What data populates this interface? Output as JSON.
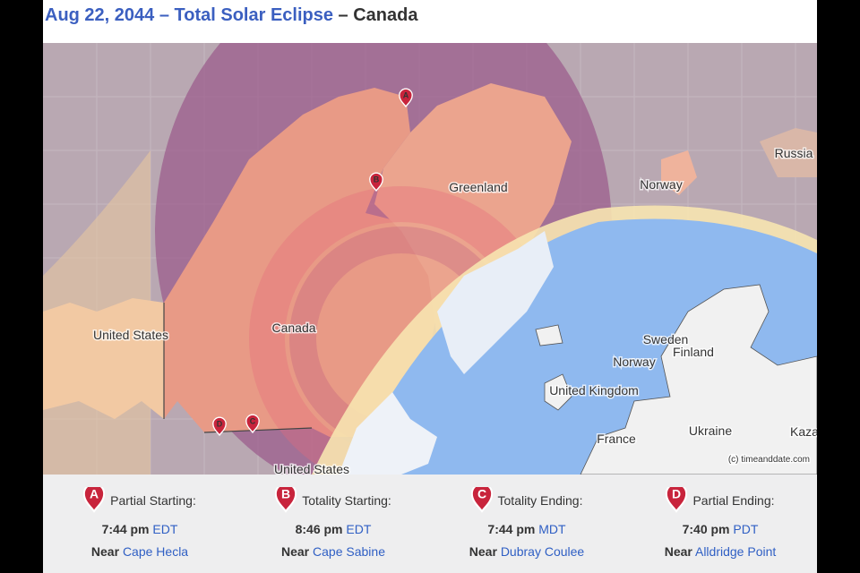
{
  "header": {
    "title_link": "Aug 22, 2044 – Total Solar Eclipse",
    "title_rest": "– Canada"
  },
  "map": {
    "labels": [
      "Russia",
      "Greenland",
      "Norway",
      "United States",
      "Canada",
      "Sweden",
      "Finland",
      "Norway",
      "United Kingdom",
      "France",
      "Ukraine",
      "Kaza",
      "United States"
    ],
    "markers": [
      "A",
      "B",
      "C",
      "D"
    ],
    "credit": "(c) timeanddate.com"
  },
  "events": [
    {
      "marker": "A",
      "label": "Partial Starting:",
      "time": "7:44 pm",
      "zone": "EDT",
      "near": "Near",
      "place": "Cape Hecla"
    },
    {
      "marker": "B",
      "label": "Totality Starting:",
      "time": "8:46 pm",
      "zone": "EDT",
      "near": "Near",
      "place": "Cape Sabine"
    },
    {
      "marker": "C",
      "label": "Totality Ending:",
      "time": "7:44 pm",
      "zone": "MDT",
      "near": "Near",
      "place": "Dubray Coulee"
    },
    {
      "marker": "D",
      "label": "Partial Ending:",
      "time": "7:40 pm",
      "zone": "PDT",
      "near": "Near",
      "place": "Alldridge Point"
    }
  ]
}
